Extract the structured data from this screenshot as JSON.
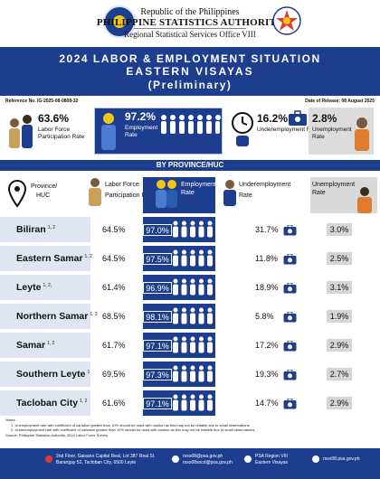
{
  "header": {
    "line1": "Republic of the Philippines",
    "line2": "PHILIPPINE STATISTICS AUTHORITY",
    "line3": "Regional Statistical Services Office VIII"
  },
  "title": {
    "line1": "2024 LABOR & EMPLOYMENT SITUATION",
    "line2": "EASTERN VISAYAS",
    "line3": "(Preliminary)"
  },
  "reference": "Reference No. IG-2025-08-0808-32",
  "release": "Date of Release: 08 August 2025",
  "summary": {
    "lfpr_value": "63.6%",
    "lfpr_label_1": "Labor Force",
    "lfpr_label_2": "Participation Rate",
    "emp_value": "97.2%",
    "emp_label_1": "Employment",
    "emp_label_2": "Rate",
    "under_value": "16.2%",
    "under_label": "Underemployment Rate",
    "unemp_value": "2.8%",
    "unemp_label_1": "Unemployment",
    "unemp_label_2": "Rate"
  },
  "section_title": "BY PROVINCE/HUC",
  "columns": {
    "province_1": "Province/",
    "province_2": "HUC",
    "lfpr_1": "Labor Force",
    "lfpr_2": "Participation Rate",
    "emp_1": "Employment",
    "emp_2": "Rate",
    "under_1": "Underemployment",
    "under_2": "Rate",
    "unemp_1": "Unemployment",
    "unemp_2": "Rate"
  },
  "rows": [
    {
      "name": "Biliran",
      "note": "1, 2",
      "lfpr": "64.5%",
      "emp": "97.0%",
      "under": "31.7%",
      "unemp": "3.0%"
    },
    {
      "name": "Eastern Samar",
      "note": "1, 2",
      "lfpr": "64.5%",
      "emp": "97.5%",
      "under": "11.8%",
      "unemp": "2.5%"
    },
    {
      "name": "Leyte",
      "note": "1, 2,",
      "lfpr": "61.4%",
      "emp": "96.9%",
      "under": "18.9%",
      "unemp": "3.1%"
    },
    {
      "name": "Northern Samar",
      "note": "1, 2",
      "lfpr": "68.5%",
      "emp": "98.1%",
      "under": "5.8%",
      "unemp": "1.9%"
    },
    {
      "name": "Samar",
      "note": "1, 2",
      "lfpr": "61.7%",
      "emp": "97.1%",
      "under": "17.2%",
      "unemp": "2.9%"
    },
    {
      "name": "Southern Leyte",
      "note": "1",
      "lfpr": "69.5%",
      "emp": "97.3%",
      "under": "19.3%",
      "unemp": "2.7%"
    },
    {
      "name": "Tacloban City",
      "note": "1, 2",
      "lfpr": "61.6%",
      "emp": "97.1%",
      "under": "14.7%",
      "unemp": "2.9%"
    }
  ],
  "notes": {
    "heading": "Notes:",
    "n1": "1. Unemployment rate with coefficient of variation greater than 10% should be used with caution as this may not be reliable due to small observations.",
    "n2": "2. Underemployment rate with coefficient of variation greater than 10% should be used with caution as this may not be reliable due to small observations.",
    "source": "Source: Philippine Statistics Authority, 2024 Labor Force Survey"
  },
  "footer": {
    "addr1": "2nd Floor, Gaisano Capital Real, Lot 387 Real St.",
    "addr2": "Barangay 52, Tacloban City, 6500 Leyte",
    "email1": "rsso08@psa.gov.ph",
    "email2": "rsso08socd@psa.gov.ph",
    "fb1": "PSA Region VIII",
    "fb2": "Eastern Visayas",
    "web": "rsso08.psa.gov.ph"
  },
  "colors": {
    "primary": "#1d3e8e",
    "label_bg": "#dfe6f2",
    "unemp_bg": "#d5d5d5"
  }
}
